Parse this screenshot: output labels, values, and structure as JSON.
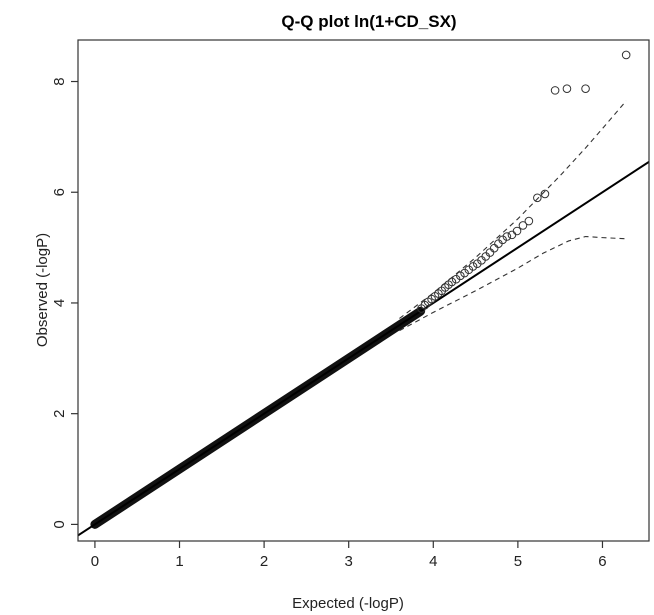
{
  "chart_data": {
    "type": "scatter",
    "title": "Q-Q plot ln(1+CD_SX)",
    "xlabel": "Expected (-logP)",
    "ylabel": "Observed (-logP)",
    "xlim": [
      -0.2,
      6.55
    ],
    "ylim": [
      -0.3,
      8.75
    ],
    "xticks": [
      0,
      1,
      2,
      3,
      4,
      5,
      6
    ],
    "yticks": [
      0,
      2,
      4,
      6,
      8
    ],
    "grid": false,
    "legend": "none",
    "reference_line": {
      "slope": 1,
      "intercept": 0
    },
    "dense_band": {
      "from": [
        0,
        0
      ],
      "to": [
        3.85,
        3.85
      ]
    },
    "points": [
      {
        "x": 3.86,
        "y": 3.9
      },
      {
        "x": 3.9,
        "y": 3.96
      },
      {
        "x": 3.94,
        "y": 4.02
      },
      {
        "x": 3.98,
        "y": 4.07
      },
      {
        "x": 4.02,
        "y": 4.12
      },
      {
        "x": 4.06,
        "y": 4.17
      },
      {
        "x": 4.1,
        "y": 4.22
      },
      {
        "x": 4.14,
        "y": 4.28
      },
      {
        "x": 4.18,
        "y": 4.33
      },
      {
        "x": 4.22,
        "y": 4.38
      },
      {
        "x": 4.27,
        "y": 4.43
      },
      {
        "x": 4.32,
        "y": 4.49
      },
      {
        "x": 4.37,
        "y": 4.54
      },
      {
        "x": 4.42,
        "y": 4.6
      },
      {
        "x": 4.47,
        "y": 4.66
      },
      {
        "x": 4.52,
        "y": 4.71
      },
      {
        "x": 4.57,
        "y": 4.77
      },
      {
        "x": 4.62,
        "y": 4.84
      },
      {
        "x": 4.67,
        "y": 4.91
      },
      {
        "x": 4.72,
        "y": 4.99
      },
      {
        "x": 4.77,
        "y": 5.07
      },
      {
        "x": 4.82,
        "y": 5.14
      },
      {
        "x": 4.87,
        "y": 5.2
      },
      {
        "x": 4.93,
        "y": 5.23
      },
      {
        "x": 4.99,
        "y": 5.3
      },
      {
        "x": 5.06,
        "y": 5.4
      },
      {
        "x": 5.13,
        "y": 5.48
      },
      {
        "x": 5.23,
        "y": 5.9
      },
      {
        "x": 5.32,
        "y": 5.97
      },
      {
        "x": 5.44,
        "y": 7.84
      },
      {
        "x": 5.58,
        "y": 7.87
      },
      {
        "x": 5.8,
        "y": 7.87
      },
      {
        "x": 6.28,
        "y": 8.48
      }
    ],
    "ci_upper": [
      {
        "x": 3.6,
        "y": 3.72
      },
      {
        "x": 4.0,
        "y": 4.18
      },
      {
        "x": 4.5,
        "y": 4.82
      },
      {
        "x": 5.0,
        "y": 5.52
      },
      {
        "x": 5.5,
        "y": 6.3
      },
      {
        "x": 5.8,
        "y": 6.8
      },
      {
        "x": 6.0,
        "y": 7.15
      },
      {
        "x": 6.28,
        "y": 7.65
      }
    ],
    "ci_lower": [
      {
        "x": 3.6,
        "y": 3.5
      },
      {
        "x": 4.0,
        "y": 3.83
      },
      {
        "x": 4.5,
        "y": 4.22
      },
      {
        "x": 5.0,
        "y": 4.63
      },
      {
        "x": 5.3,
        "y": 4.9
      },
      {
        "x": 5.6,
        "y": 5.12
      },
      {
        "x": 5.8,
        "y": 5.2
      },
      {
        "x": 6.0,
        "y": 5.18
      },
      {
        "x": 6.28,
        "y": 5.16
      }
    ]
  }
}
